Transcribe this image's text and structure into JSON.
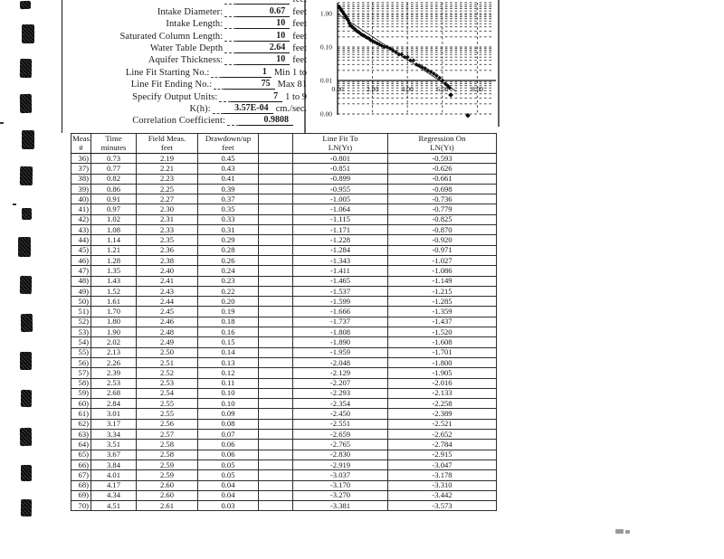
{
  "form": {
    "rows": [
      {
        "label": "",
        "value": "",
        "unit": "feet",
        "partial": true
      },
      {
        "label": "Intake Diameter:",
        "value": "0.67",
        "unit": "feet"
      },
      {
        "label": "Intake Length:",
        "value": "10",
        "unit": "feet"
      },
      {
        "label": "Saturated Column Length:",
        "value": "10",
        "unit": "feet"
      },
      {
        "label": "Water Table Depth",
        "value": "2.64",
        "unit": "feet"
      },
      {
        "label": "Aquifer Thickness:",
        "value": "10",
        "unit": "feet"
      },
      {
        "label": "Line Fit Starting No.:",
        "value": "1",
        "unit": "Min 1 to"
      },
      {
        "label": "Line Fit Ending No.:",
        "value": "75",
        "unit": "Max 81"
      },
      {
        "label": "Specify Output Units:",
        "value": "7",
        "unit": "1 to 9"
      },
      {
        "label": "K(h):",
        "value": "3.57E-04",
        "unit": "cm./sec."
      },
      {
        "label": "Correlation Coefficient:",
        "value": "0.9808",
        "unit": ""
      }
    ]
  },
  "chart_data": {
    "type": "scatter",
    "title": "",
    "xlabel": "",
    "ylabel": "",
    "y_scale": "log",
    "xlim": [
      0,
      8.6
    ],
    "x_ticks": [
      0,
      2,
      4,
      6,
      8
    ],
    "x_tick_labels": [
      "0.00",
      "2.00",
      "4.00",
      "6.00",
      "8.00"
    ],
    "y_tick_values": [
      1.0,
      0.1,
      0.01,
      0.001
    ],
    "y_tick_labels": [
      "1.00",
      "0.10",
      "0.01",
      "0.00"
    ],
    "grid": "dashed semilog",
    "legend_position": "none",
    "series": [
      {
        "name": "drawdown vs time",
        "marker": "diamond",
        "points": [
          [
            0.08,
            1.62
          ],
          [
            0.13,
            1.48
          ],
          [
            0.19,
            1.33
          ],
          [
            0.25,
            1.2
          ],
          [
            0.31,
            1.08
          ],
          [
            0.37,
            0.97
          ],
          [
            0.43,
            0.88
          ],
          [
            0.49,
            0.79
          ],
          [
            0.55,
            0.7
          ],
          [
            0.61,
            0.62
          ],
          [
            0.67,
            0.53
          ],
          [
            0.73,
            0.45
          ],
          [
            0.77,
            0.43
          ],
          [
            0.82,
            0.41
          ],
          [
            0.86,
            0.39
          ],
          [
            0.91,
            0.37
          ],
          [
            0.97,
            0.35
          ],
          [
            1.02,
            0.33
          ],
          [
            1.08,
            0.31
          ],
          [
            1.14,
            0.29
          ],
          [
            1.21,
            0.28
          ],
          [
            1.28,
            0.26
          ],
          [
            1.35,
            0.24
          ],
          [
            1.43,
            0.23
          ],
          [
            1.52,
            0.22
          ],
          [
            1.61,
            0.2
          ],
          [
            1.7,
            0.19
          ],
          [
            1.8,
            0.18
          ],
          [
            1.9,
            0.16
          ],
          [
            2.02,
            0.15
          ],
          [
            2.13,
            0.14
          ],
          [
            2.26,
            0.13
          ],
          [
            2.39,
            0.12
          ],
          [
            2.53,
            0.11
          ],
          [
            2.68,
            0.1
          ],
          [
            2.84,
            0.1
          ],
          [
            3.01,
            0.09
          ],
          [
            3.17,
            0.08
          ],
          [
            3.34,
            0.07
          ],
          [
            3.51,
            0.06
          ],
          [
            3.67,
            0.06
          ],
          [
            3.84,
            0.05
          ],
          [
            4.01,
            0.05
          ],
          [
            4.17,
            0.04
          ],
          [
            4.34,
            0.04
          ],
          [
            4.51,
            0.03
          ],
          [
            4.67,
            0.028
          ],
          [
            4.84,
            0.025
          ],
          [
            5.01,
            0.023
          ],
          [
            5.17,
            0.02
          ],
          [
            5.34,
            0.018
          ],
          [
            5.51,
            0.016
          ],
          [
            5.67,
            0.014
          ],
          [
            5.84,
            0.012
          ],
          [
            6.01,
            0.01
          ],
          [
            6.17,
            0.008
          ],
          [
            6.31,
            0.007
          ],
          [
            6.42,
            0.006
          ]
        ]
      }
    ],
    "outlier_points": [
      [
        6.48,
        0.0037
      ],
      [
        7.46,
        0.0009
      ]
    ],
    "fit_line_endpoints": [
      [
        0,
        0.98
      ],
      [
        6.8,
        0.0047
      ]
    ]
  },
  "table": {
    "headers": [
      [
        "Meas.",
        "#"
      ],
      [
        "Time",
        "minutes"
      ],
      [
        "Field Meas.",
        "feet"
      ],
      [
        "Drawdown/up",
        "feet"
      ],
      [
        "",
        ""
      ],
      [
        "Line Fit To",
        "LN(Yt)"
      ],
      [
        "Regression On",
        "LN(Yt)"
      ]
    ],
    "rows": [
      [
        "36)",
        "0.73",
        "2.19",
        "0.45",
        "",
        "-0.801",
        "-0.593"
      ],
      [
        "37)",
        "0.77",
        "2.21",
        "0.43",
        "",
        "-0.851",
        "-0.626"
      ],
      [
        "38)",
        "0.82",
        "2.23",
        "0.41",
        "",
        "-0.899",
        "-0.661"
      ],
      [
        "39)",
        "0.86",
        "2.25",
        "0.39",
        "",
        "-0.955",
        "-0.698"
      ],
      [
        "40)",
        "0.91",
        "2.27",
        "0.37",
        "",
        "-1.005",
        "-0.736"
      ],
      [
        "41)",
        "0.97",
        "2.30",
        "0.35",
        "",
        "-1.064",
        "-0.779"
      ],
      [
        "42)",
        "1.02",
        "2.31",
        "0.33",
        "",
        "-1.115",
        "-0.825"
      ],
      [
        "43)",
        "1.08",
        "2.33",
        "0.31",
        "",
        "-1.171",
        "-0.870"
      ],
      [
        "44)",
        "1.14",
        "2.35",
        "0.29",
        "",
        "-1.228",
        "-0.920"
      ],
      [
        "45)",
        "1.21",
        "2.36",
        "0.28",
        "",
        "-1.284",
        "-0.971"
      ],
      [
        "46)",
        "1.28",
        "2.38",
        "0.26",
        "",
        "-1.343",
        "-1.027"
      ],
      [
        "47)",
        "1.35",
        "2.40",
        "0.24",
        "",
        "-1.411",
        "-1.086"
      ],
      [
        "48)",
        "1.43",
        "2.41",
        "0.23",
        "",
        "-1.465",
        "-1.149"
      ],
      [
        "49)",
        "1.52",
        "2.43",
        "0.22",
        "",
        "-1.537",
        "-1.215"
      ],
      [
        "50)",
        "1.61",
        "2.44",
        "0.20",
        "",
        "-1.599",
        "-1.285"
      ],
      [
        "51)",
        "1.70",
        "2.45",
        "0.19",
        "",
        "-1.666",
        "-1.359"
      ],
      [
        "52)",
        "1.80",
        "2.46",
        "0.18",
        "",
        "-1.737",
        "-1.437"
      ],
      [
        "53)",
        "1.90",
        "2.48",
        "0.16",
        "",
        "-1.808",
        "-1.520"
      ],
      [
        "54)",
        "2.02",
        "2.49",
        "0.15",
        "",
        "-1.890",
        "-1.608"
      ],
      [
        "55)",
        "2.13",
        "2.50",
        "0.14",
        "",
        "-1.959",
        "-1.701"
      ],
      [
        "56)",
        "2.26",
        "2.51",
        "0.13",
        "",
        "-2.048",
        "-1.800"
      ],
      [
        "57)",
        "2.39",
        "2.52",
        "0.12",
        "",
        "-2.129",
        "-1.905"
      ],
      [
        "58)",
        "2.53",
        "2.53",
        "0.11",
        "",
        "-2.207",
        "-2.016"
      ],
      [
        "59)",
        "2.68",
        "2.54",
        "0.10",
        "",
        "-2.293",
        "-2.133"
      ],
      [
        "60)",
        "2.84",
        "2.55",
        "0.10",
        "",
        "-2.354",
        "-2.258"
      ],
      [
        "61)",
        "3.01",
        "2.55",
        "0.09",
        "",
        "-2.450",
        "-2.389"
      ],
      [
        "62)",
        "3.17",
        "2.56",
        "0.08",
        "",
        "-2.551",
        "-2.521"
      ],
      [
        "63)",
        "3.34",
        "2.57",
        "0.07",
        "",
        "-2.659",
        "-2.652"
      ],
      [
        "64)",
        "3.51",
        "2.58",
        "0.06",
        "",
        "-2.765",
        "-2.784"
      ],
      [
        "65)",
        "3.67",
        "2.58",
        "0.06",
        "",
        "-2.830",
        "-2.915"
      ],
      [
        "66)",
        "3.84",
        "2.59",
        "0.05",
        "",
        "-2.919",
        "-3.047"
      ],
      [
        "67)",
        "4.01",
        "2.59",
        "0.05",
        "",
        "-3.037",
        "-3.178"
      ],
      [
        "68)",
        "4.17",
        "2.60",
        "0.04",
        "",
        "-3.170",
        "-3.310"
      ],
      [
        "69)",
        "4.34",
        "2.60",
        "0.04",
        "",
        "-3.270",
        "-3.442"
      ],
      [
        "70)",
        "4.51",
        "2.61",
        "0.03",
        "",
        "-3.381",
        "-3.573"
      ]
    ]
  }
}
